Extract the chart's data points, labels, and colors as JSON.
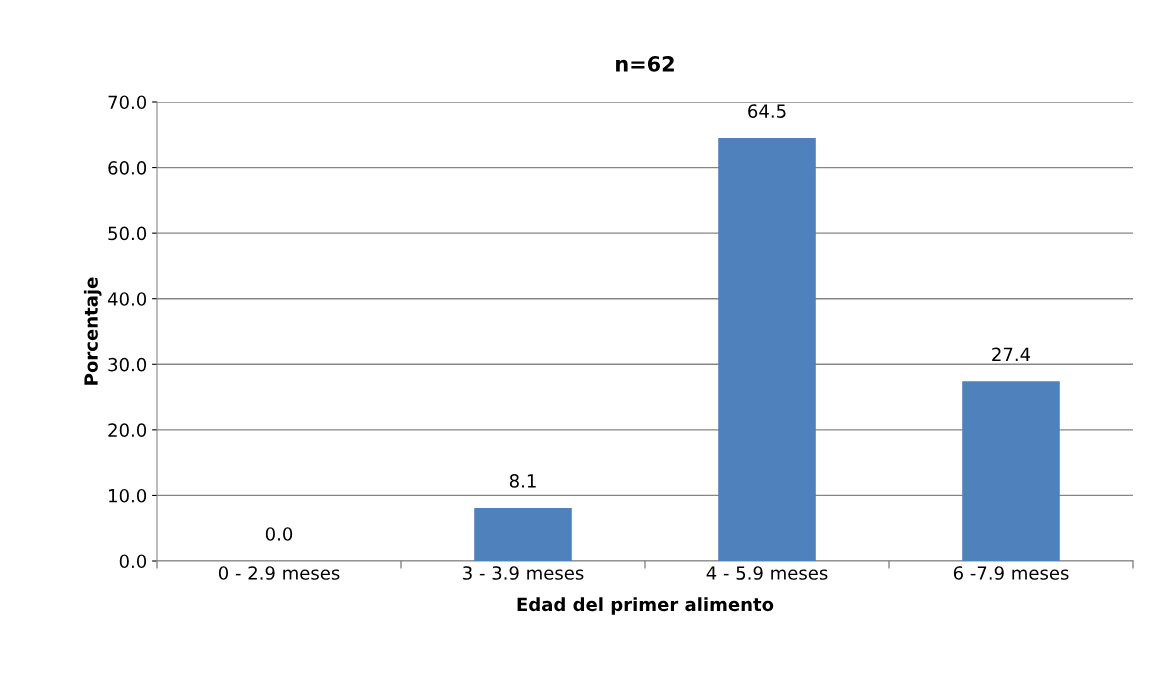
{
  "chart_data": {
    "type": "bar",
    "title": "n=62",
    "xlabel": "Edad del primer alimento",
    "ylabel": "Porcentaje",
    "categories": [
      "0 - 2.9 meses",
      "3 - 3.9 meses",
      "4 - 5.9 meses",
      "6 -7.9 meses"
    ],
    "values": [
      0.0,
      8.1,
      64.5,
      27.4
    ],
    "color": "#4f81bd",
    "ylim": [
      0,
      70
    ],
    "yticks": [
      {
        "value": 0,
        "label": "0.0"
      },
      {
        "value": 10,
        "label": "10.0"
      },
      {
        "value": 20,
        "label": "20.0"
      },
      {
        "value": 30,
        "label": "30.0"
      },
      {
        "value": 40,
        "label": "40.0"
      },
      {
        "value": 50,
        "label": "50.0"
      },
      {
        "value": 60,
        "label": "60.0"
      },
      {
        "value": 70,
        "label": "70.0"
      }
    ],
    "grid": "y",
    "value_labels": [
      "0.0",
      "8.1",
      "64.5",
      "27.4"
    ]
  }
}
